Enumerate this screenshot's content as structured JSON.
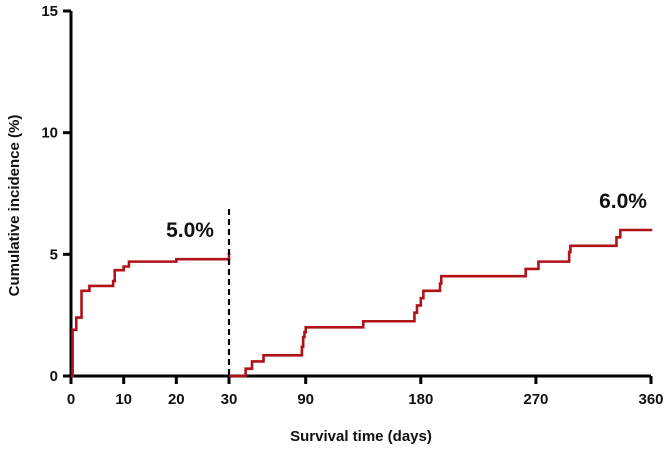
{
  "chart_data": {
    "type": "line",
    "title": "",
    "xlabel": "Survival time (days)",
    "ylabel": "Cumulative incidence  (%)",
    "ylim": [
      0,
      15
    ],
    "y_ticks": [
      0,
      5,
      10,
      15
    ],
    "grid": false,
    "colors": {
      "series": "#b01217",
      "axis": "#000000",
      "divider": "#000000"
    },
    "panels": [
      {
        "name": "early",
        "xlim": [
          0,
          30
        ],
        "x_ticks": [
          0,
          10,
          20,
          30
        ],
        "annotation": "5.0%",
        "series": [
          {
            "steps": [
              [
                0,
                0
              ],
              [
                0.3,
                1.9
              ],
              [
                1,
                2.4
              ],
              [
                2,
                3.5
              ],
              [
                3.5,
                3.7
              ],
              [
                8,
                3.9
              ],
              [
                8.3,
                4.35
              ],
              [
                10,
                4.5
              ],
              [
                11,
                4.7
              ],
              [
                20,
                4.8
              ],
              [
                30,
                5.05
              ]
            ]
          }
        ]
      },
      {
        "name": "late",
        "xlim": [
          30,
          360
        ],
        "x_ticks": [
          30,
          90,
          180,
          270,
          360
        ],
        "annotation": "6.0%",
        "series": [
          {
            "steps": [
              [
                30,
                0
              ],
              [
                43,
                0.3
              ],
              [
                48,
                0.6
              ],
              [
                57,
                0.85
              ],
              [
                87,
                1.2
              ],
              [
                88,
                1.6
              ],
              [
                89,
                1.8
              ],
              [
                90,
                2.0
              ],
              [
                135,
                2.25
              ],
              [
                175,
                2.6
              ],
              [
                177,
                2.9
              ],
              [
                180,
                3.2
              ],
              [
                182,
                3.5
              ],
              [
                195,
                3.8
              ],
              [
                196,
                4.1
              ],
              [
                262,
                4.4
              ],
              [
                272,
                4.7
              ],
              [
                296,
                5.1
              ],
              [
                297,
                5.35
              ],
              [
                333,
                5.7
              ],
              [
                336,
                6.0
              ],
              [
                360,
                6.05
              ]
            ]
          }
        ]
      }
    ]
  }
}
